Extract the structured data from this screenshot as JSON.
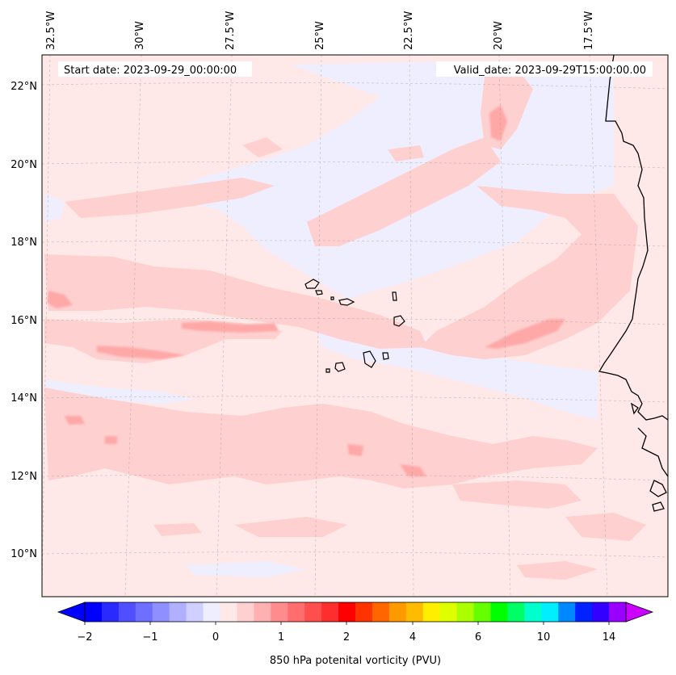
{
  "header": {
    "start_date": "Start date: 2023-09-29_00:00:00",
    "valid_date": "Valid_date: 2023-09-29T15:00:00.00"
  },
  "map": {
    "lon_labels": [
      "32.5°W",
      "30°W",
      "27.5°W",
      "25°W",
      "22.5°W",
      "20°W",
      "17.5°W"
    ],
    "lat_labels": [
      "22°N",
      "20°N",
      "18°N",
      "16°N",
      "14°N",
      "12°N",
      "10°N"
    ],
    "background_color": "#ffe8e8",
    "pale_blue": "#eeeeff",
    "light_pink": "#ffd0d0",
    "mid_pink": "#ffa8a8",
    "coast_color": "#000000"
  },
  "colorbar": {
    "label": "850 hPa potenital vorticity (PVU)",
    "ticks": [
      "−2",
      "−1",
      "0",
      "1",
      "2",
      "4",
      "6",
      "10",
      "14"
    ],
    "colors": [
      "#0000ff",
      "#2a2aff",
      "#4f4fff",
      "#6f6fff",
      "#8f8fff",
      "#b0b0ff",
      "#d0d0ff",
      "#eeeeff",
      "#ffe8e8",
      "#ffd0d0",
      "#ffb0b0",
      "#ff8c8c",
      "#ff6e6e",
      "#ff4e4e",
      "#ff2e2e",
      "#ff0000",
      "#ff3300",
      "#ff6600",
      "#ff9900",
      "#ffbb00",
      "#ffee00",
      "#ddff00",
      "#aaff00",
      "#66ff00",
      "#00ff00",
      "#00ff66",
      "#00ffcc",
      "#00eeff",
      "#0088ff",
      "#0022ff",
      "#3300ff",
      "#9900ff"
    ],
    "extend_low_color": "#0000ff",
    "extend_high_color": "#cc00ff"
  }
}
